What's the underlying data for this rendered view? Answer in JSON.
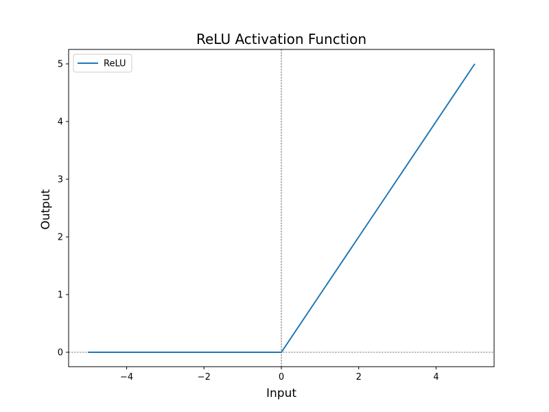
{
  "chart_data": {
    "type": "line",
    "title": "ReLU Activation Function",
    "xlabel": "Input",
    "ylabel": "Output",
    "xlim": [
      -5.5,
      5.5
    ],
    "ylim": [
      -0.25,
      5.25
    ],
    "xticks": [
      -4,
      -2,
      0,
      2,
      4
    ],
    "yticks": [
      0,
      1,
      2,
      3,
      4,
      5
    ],
    "xtick_labels": [
      "−4",
      "−2",
      "0",
      "2",
      "4"
    ],
    "ytick_labels": [
      "0",
      "1",
      "2",
      "3",
      "4",
      "5"
    ],
    "grid": false,
    "legend": {
      "position": "top-left",
      "entries": [
        "ReLU"
      ]
    },
    "reference_lines": [
      {
        "orientation": "horizontal",
        "value": 0,
        "style": "dashed",
        "color": "#000000"
      },
      {
        "orientation": "vertical",
        "value": 0,
        "style": "dashed",
        "color": "#000000"
      }
    ],
    "series": [
      {
        "name": "ReLU",
        "color": "#1f77b4",
        "x": [
          -5,
          -4,
          -3,
          -2,
          -1,
          0,
          0.05,
          1,
          2,
          3,
          4,
          5
        ],
        "y": [
          0,
          0,
          0,
          0,
          0,
          0,
          0.05,
          1,
          2,
          3,
          4,
          5
        ]
      }
    ]
  }
}
